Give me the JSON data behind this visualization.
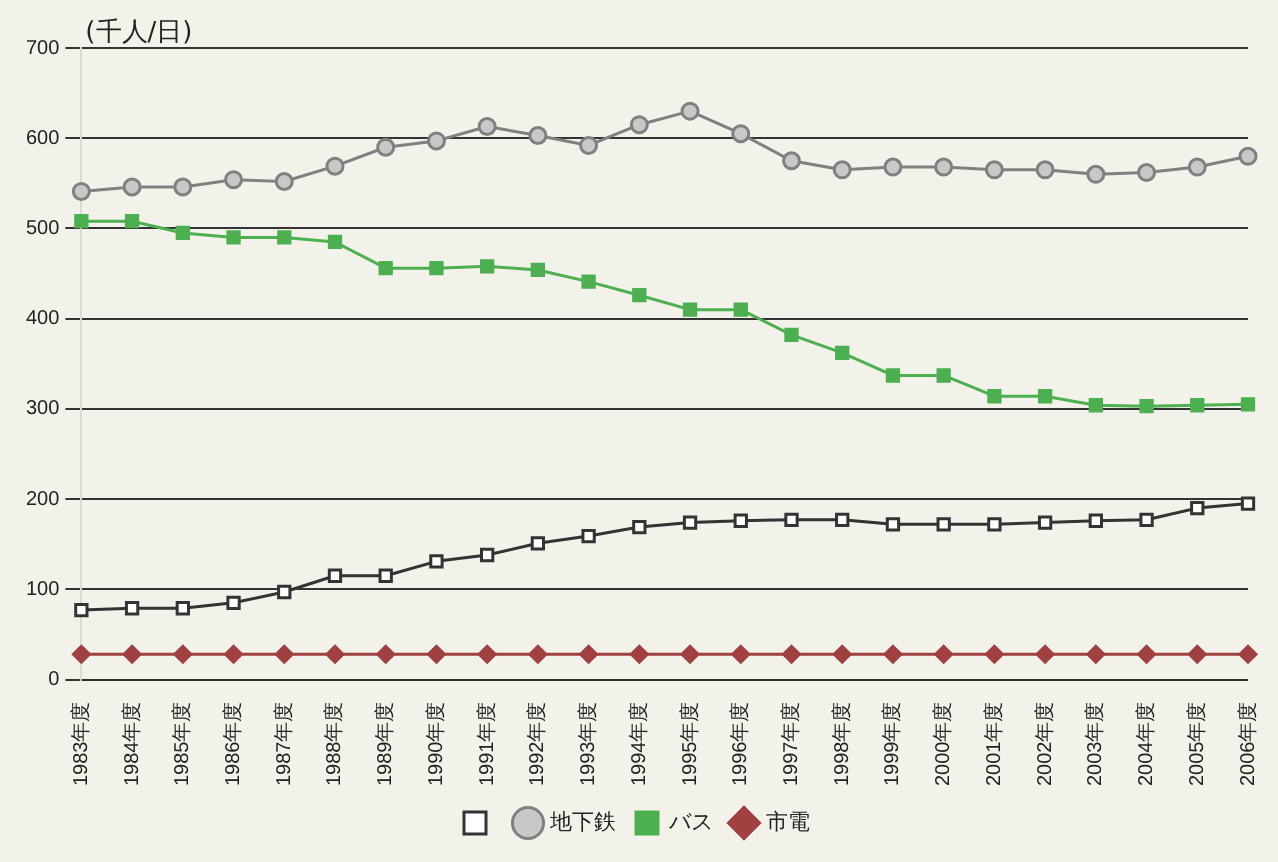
{
  "chart_data": {
    "type": "line",
    "ylabel": "(千人/日)",
    "categories": [
      "1983年度",
      "1984年度",
      "1985年度",
      "1986年度",
      "1987年度",
      "1988年度",
      "1989年度",
      "1990年度",
      "1991年度",
      "1992年度",
      "1993年度",
      "1994年度",
      "1995年度",
      "1996年度",
      "1997年度",
      "1998年度",
      "1999年度",
      "2000年度",
      "2001年度",
      "2002年度",
      "2003年度",
      "2004年度",
      "2005年度",
      "2006年度"
    ],
    "series": [
      {
        "color": "#333333",
        "marker": "square",
        "values": [
          77,
          79,
          79,
          85,
          97,
          115,
          115,
          131,
          138,
          151,
          159,
          169,
          174,
          176,
          177,
          177,
          172,
          172,
          172,
          174,
          176,
          177,
          190,
          195
        ]
      },
      {
        "name": "地下鉄",
        "color": "#808080",
        "marker": "circle",
        "values": [
          541,
          546,
          546,
          554,
          552,
          569,
          590,
          597,
          613,
          603,
          592,
          615,
          630,
          605,
          575,
          565,
          568,
          568,
          565,
          565,
          560,
          562,
          568,
          580
        ]
      },
      {
        "name": "バス",
        "color": "#4caf50",
        "marker": "square",
        "values": [
          508,
          508,
          495,
          490,
          490,
          485,
          456,
          456,
          458,
          454,
          441,
          426,
          410,
          410,
          382,
          362,
          337,
          337,
          314,
          314,
          304,
          303,
          304,
          305
        ]
      },
      {
        "name": "市電",
        "color": "#a04040",
        "marker": "diamond",
        "values": [
          28,
          28,
          28,
          28,
          28,
          28,
          28,
          28,
          28,
          28,
          28,
          28,
          28,
          28,
          28,
          28,
          28,
          28,
          28,
          28,
          28,
          28,
          28,
          28
        ]
      }
    ],
    "ylim": [
      0,
      700
    ],
    "yticks": [
      0,
      100,
      200,
      300,
      400,
      500,
      600,
      700
    ],
    "grid": "y",
    "legend": "bottom"
  }
}
